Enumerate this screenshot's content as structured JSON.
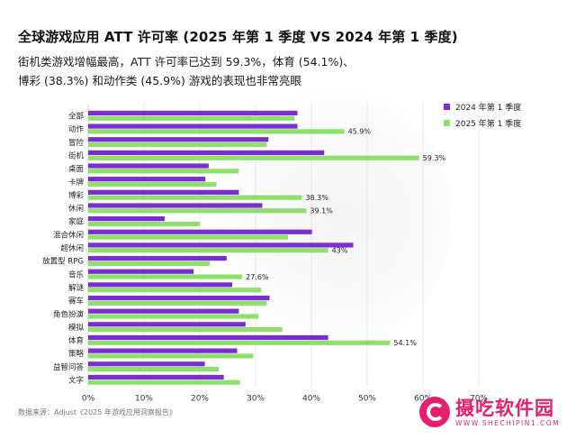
{
  "title": "全球游戏应用 ATT 许可率 (2025 年第 1 季度 VS 2024 年第 1 季度)",
  "subtitle_line1": "街机类游戏增幅最高，ATT 许可率已达到 59.3%，体育 (54.1%)、",
  "subtitle_line2": "博彩 (38.3%) 和动作类 (45.9%) 游戏的表现也非常亮眼",
  "source": "数据来源：Adjust《2025 年游戏应用洞察报告》",
  "logo": {
    "name": "摄吃软件园",
    "url": "WWW.SHECHIPIN1.COM"
  },
  "chart_data": {
    "type": "bar",
    "orientation": "horizontal",
    "categories": [
      "全部",
      "动作",
      "冒险",
      "街机",
      "桌面",
      "卡牌",
      "博彩",
      "休闲",
      "家庭",
      "混合休闲",
      "超休闲",
      "放置型 RPG",
      "音乐",
      "解谜",
      "赛车",
      "角色扮演",
      "模拟",
      "体育",
      "策略",
      "益智问答",
      "文字"
    ],
    "series": [
      {
        "name": "2024 年第 1 季度",
        "color": "#7a2dd3",
        "values": [
          37.5,
          37.5,
          32.3,
          42.3,
          21.6,
          21.0,
          27.0,
          31.2,
          13.7,
          40.1,
          47.5,
          24.8,
          18.9,
          25.8,
          32.5,
          27.0,
          28.2,
          43.0,
          26.7,
          20.9,
          24.3
        ]
      },
      {
        "name": "2025 年第 1 季度",
        "color": "#8ee06b",
        "values": [
          37.0,
          45.9,
          32.0,
          59.3,
          27.0,
          23.0,
          38.3,
          39.1,
          20.0,
          35.8,
          43.0,
          21.8,
          27.6,
          31.0,
          32.0,
          30.5,
          34.8,
          54.1,
          29.6,
          23.4,
          27.2
        ]
      }
    ],
    "data_labels": [
      {
        "category": "动作",
        "text": "45.9%"
      },
      {
        "category": "街机",
        "text": "59.3%"
      },
      {
        "category": "博彩",
        "text": "38.3%"
      },
      {
        "category": "休闲",
        "text": "39.1%"
      },
      {
        "category": "超休闲",
        "text": "43%"
      },
      {
        "category": "音乐",
        "text": "27.6%"
      },
      {
        "category": "体育",
        "text": "54.1%"
      }
    ],
    "xlim": [
      0,
      70
    ],
    "xticks": [
      "0%",
      "10%",
      "20%",
      "30%",
      "40%",
      "50%",
      "60%",
      "70%"
    ],
    "grid": "vertical-gridlines",
    "legend_position": "top-right"
  }
}
